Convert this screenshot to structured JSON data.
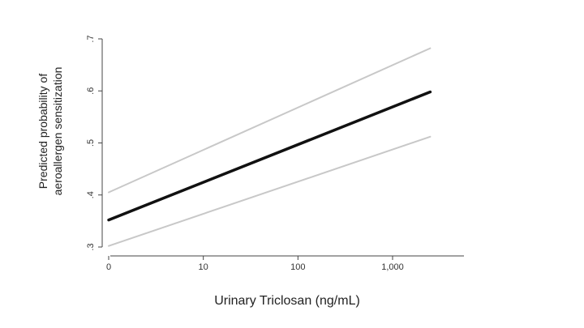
{
  "chart_data": {
    "type": "line",
    "title": "",
    "xlabel": "Urinary Triclosan (ng/mL)",
    "ylabel_lines": [
      "Predicted probability of",
      "aeroallergen sensitization"
    ],
    "x_scale": "log",
    "x_ticks": [
      {
        "value": 0,
        "label": "0"
      },
      {
        "value": 10,
        "label": "10"
      },
      {
        "value": 100,
        "label": "100"
      },
      {
        "value": 1000,
        "label": "1,000"
      }
    ],
    "y_ticks": [
      {
        "value": 0.3,
        "label": ".3"
      },
      {
        "value": 0.4,
        "label": ".4"
      },
      {
        "value": 0.5,
        "label": ".5"
      },
      {
        "value": 0.6,
        "label": ".6"
      },
      {
        "value": 0.7,
        "label": ".7"
      }
    ],
    "ylim": [
      0.3,
      0.7
    ],
    "series": [
      {
        "role": "estimate",
        "color": "#111111",
        "x": [
          1,
          2500
        ],
        "y": [
          0.352,
          0.598
        ]
      },
      {
        "role": "upper-ci",
        "color": "#c8c8c8",
        "x": [
          1,
          2500
        ],
        "y": [
          0.405,
          0.682
        ]
      },
      {
        "role": "lower-ci",
        "color": "#c8c8c8",
        "x": [
          1,
          2500
        ],
        "y": [
          0.302,
          0.512
        ]
      }
    ],
    "grid": false,
    "legend": "none"
  }
}
